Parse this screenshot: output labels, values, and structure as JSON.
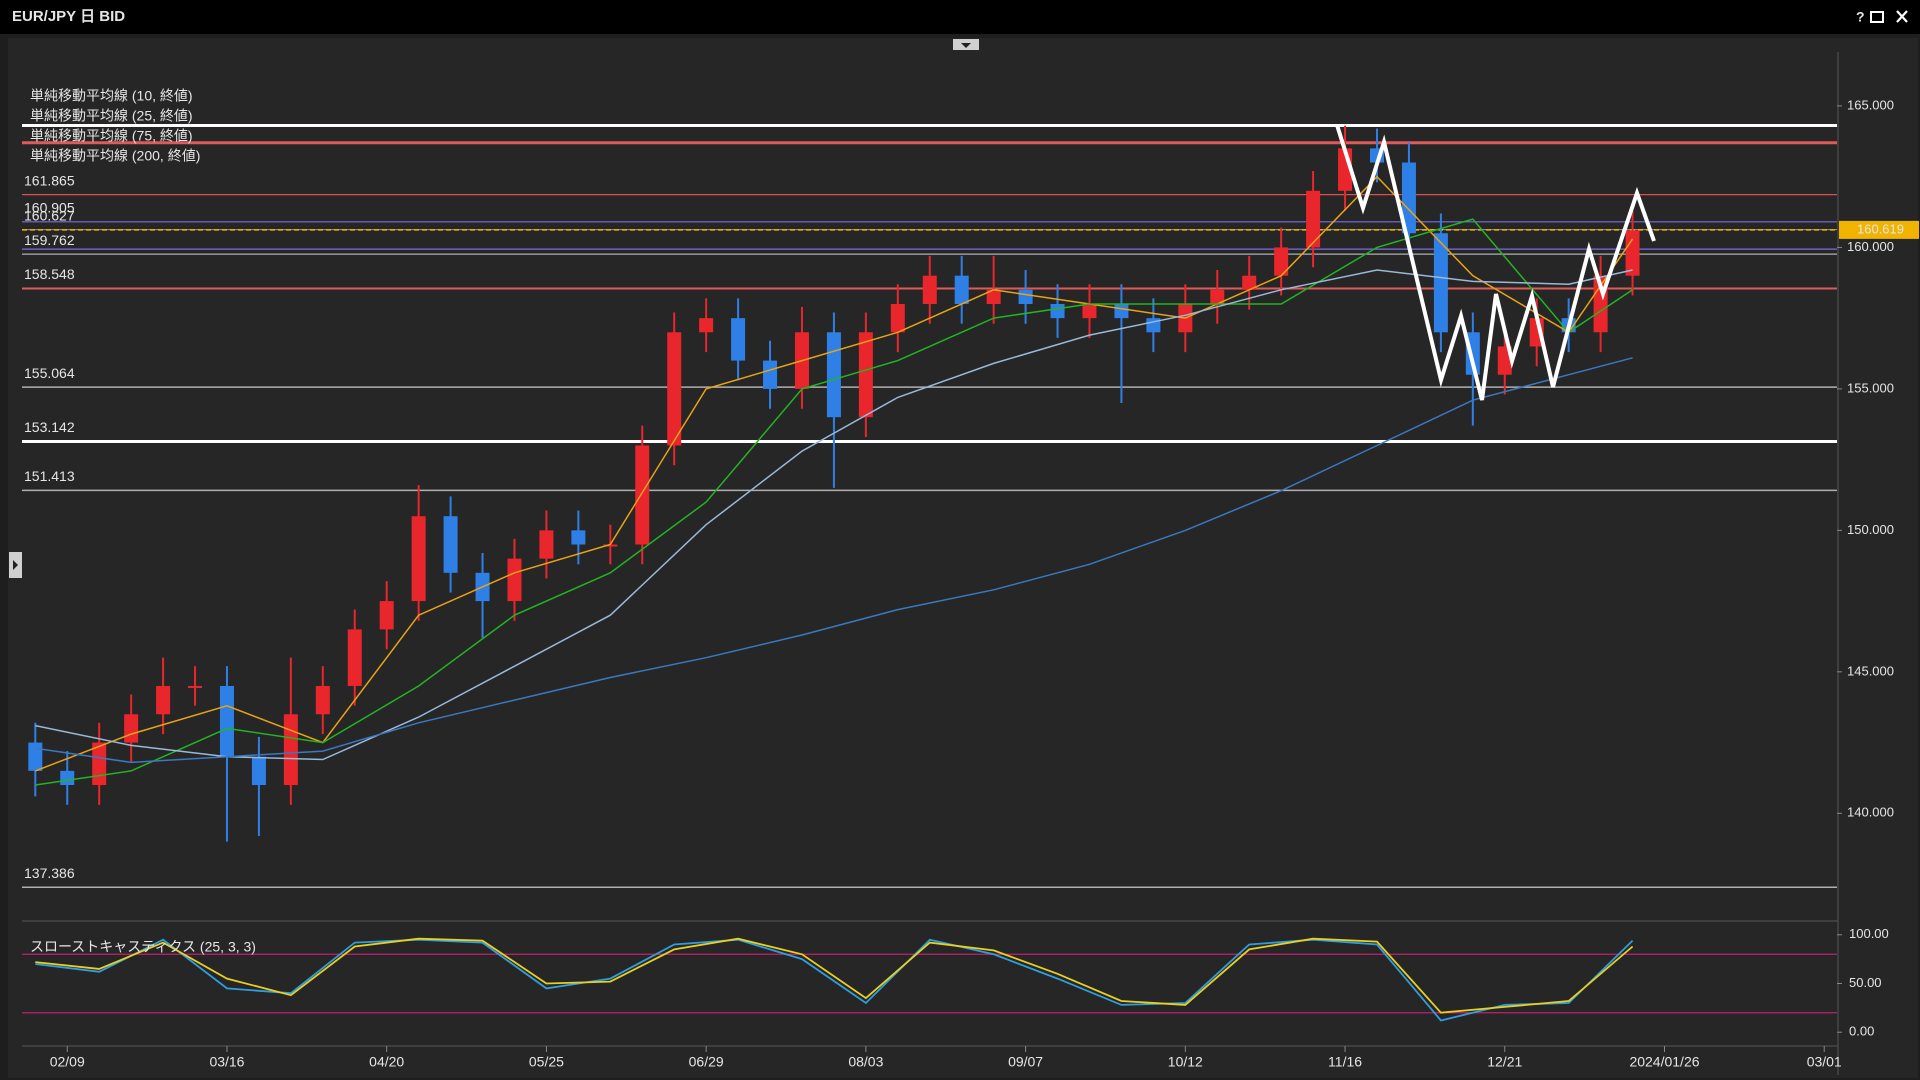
{
  "chart_data": {
    "type": "candlestick",
    "title": "EUR/JPY 日 BID",
    "help_button": "?",
    "x": [
      -1,
      0,
      1,
      2,
      3,
      4,
      5,
      6,
      7,
      8,
      9,
      10,
      11,
      12,
      13,
      14,
      15,
      16,
      17,
      18,
      19,
      20,
      21,
      22,
      23,
      24,
      25,
      26,
      27,
      28,
      29,
      30,
      31,
      32,
      33,
      34,
      35,
      36,
      37,
      38,
      39,
      40,
      41,
      42,
      43,
      44,
      45,
      46,
      47,
      48,
      49
    ],
    "open": [
      142.5,
      141.5,
      141,
      142.5,
      143.5,
      144.5,
      144.5,
      142,
      141,
      143.5,
      144.5,
      146.5,
      147.5,
      150.5,
      148.5,
      147.5,
      149,
      150,
      149.5,
      149.5,
      153,
      157,
      157.5,
      156,
      155,
      157,
      154,
      157,
      158,
      159,
      158,
      158.5,
      158,
      157.5,
      158,
      157.5,
      157,
      158,
      158.5,
      159,
      160,
      162,
      163.5,
      163,
      160.5,
      157,
      155.5,
      156.5,
      157.5,
      157,
      159
    ],
    "high": [
      143.2,
      142.2,
      143.2,
      144.2,
      145.5,
      145.2,
      145.2,
      142.7,
      145.5,
      145.2,
      147.2,
      148.2,
      151.6,
      151.2,
      149.2,
      149.7,
      150.7,
      150.7,
      150.2,
      153.7,
      157.7,
      158.2,
      158.2,
      156.7,
      157.9,
      157.7,
      157.7,
      158.7,
      159.7,
      159.7,
      159.7,
      159.2,
      158.7,
      158.7,
      158.7,
      158.2,
      158.7,
      159.2,
      159.7,
      160.7,
      162.7,
      164.3,
      164.2,
      163.7,
      161.2,
      157.7,
      157.2,
      158.2,
      158.2,
      159.7,
      161.3
    ],
    "low": [
      140.6,
      140.3,
      140.3,
      141.8,
      142.8,
      143.8,
      139,
      139.2,
      140.3,
      142.8,
      143.8,
      145.8,
      146.8,
      147.8,
      146.2,
      146.8,
      148.3,
      148.8,
      148.8,
      148.8,
      152.3,
      156.3,
      155.3,
      154.3,
      154.3,
      151.5,
      153.3,
      156.3,
      157.3,
      157.3,
      157.3,
      157.3,
      156.8,
      156.8,
      154.5,
      156.3,
      156.3,
      157.3,
      157.8,
      158.3,
      159.3,
      161.3,
      162.3,
      159.8,
      156.3,
      153.7,
      154.8,
      155.8,
      156.3,
      156.3,
      158.3
    ],
    "close": [
      141.5,
      141,
      142.5,
      143.5,
      144.5,
      144.5,
      142,
      141,
      143.5,
      144.5,
      146.5,
      147.5,
      150.5,
      148.5,
      147.5,
      149,
      150,
      149.5,
      149.5,
      153,
      157,
      157.5,
      156,
      155,
      157,
      154,
      157,
      158,
      159,
      158,
      158.5,
      158,
      157.5,
      158,
      157.5,
      157,
      158,
      158.5,
      159,
      160,
      162,
      163.5,
      163,
      160.5,
      157,
      155.5,
      156.5,
      157.5,
      157,
      159,
      160.6
    ],
    "up_color": "#e8262c",
    "down_color": "#2f80e6",
    "xlim": [
      -1.26,
      55.4
    ],
    "xticks": [
      {
        "value": 0,
        "label": "02/09"
      },
      {
        "value": 5,
        "label": "03/16"
      },
      {
        "value": 10,
        "label": "04/20"
      },
      {
        "value": 15,
        "label": "05/25"
      },
      {
        "value": 20,
        "label": "06/29"
      },
      {
        "value": 25,
        "label": "08/03"
      },
      {
        "value": 30,
        "label": "09/07"
      },
      {
        "value": 35,
        "label": "10/12"
      },
      {
        "value": 40,
        "label": "11/16"
      },
      {
        "value": 45,
        "label": "12/21"
      },
      {
        "value": 50,
        "label": "2024/01/26"
      },
      {
        "value": 55,
        "label": "03/01"
      }
    ],
    "ylim": [
      136.3,
      166.8
    ],
    "yticks": [
      {
        "value": 140,
        "label": "140.000"
      },
      {
        "value": 145,
        "label": "145.000"
      },
      {
        "value": 150,
        "label": "150.000"
      },
      {
        "value": 155,
        "label": "155.000"
      },
      {
        "value": 160,
        "label": "160.000"
      },
      {
        "value": 165,
        "label": "165.000"
      }
    ],
    "last_price": 160.619,
    "last_price_color": "#f0b400",
    "series": [
      {
        "name": "単純移動平均線 (10, 終値)",
        "color": "#e8a317",
        "x": [
          -1,
          2,
          5,
          8,
          11,
          14,
          17,
          20,
          23,
          26,
          29,
          32,
          35,
          38,
          41,
          44,
          47,
          49
        ],
        "values": [
          141.5,
          142.8,
          143.8,
          142.5,
          147,
          148.5,
          149.5,
          155,
          156,
          157,
          158.5,
          158,
          157.5,
          159,
          162.5,
          159,
          157,
          160.3
        ]
      },
      {
        "name": "単純移動平均線 (25, 終値)",
        "color": "#22b422",
        "x": [
          -1,
          2,
          5,
          8,
          11,
          14,
          17,
          20,
          23,
          26,
          29,
          32,
          35,
          38,
          41,
          44,
          47,
          49
        ],
        "values": [
          141,
          141.5,
          143,
          142.5,
          144.5,
          147,
          148.5,
          151,
          155,
          156,
          157.5,
          158,
          158,
          158,
          160,
          161,
          157,
          158.5
        ]
      },
      {
        "name": "単純移動平均線 (75, 終値)",
        "color": "#9ab8d8",
        "x": [
          -1,
          2,
          5,
          8,
          11,
          14,
          17,
          20,
          23,
          26,
          29,
          32,
          35,
          38,
          41,
          44,
          47,
          49
        ],
        "values": [
          143.1,
          142.4,
          142,
          141.9,
          143.4,
          145.2,
          147,
          150.2,
          152.8,
          154.7,
          155.9,
          156.9,
          157.6,
          158.5,
          159.2,
          158.8,
          158.7,
          159.2
        ]
      },
      {
        "name": "単純移動平均線 (200, 終値)",
        "color": "#3a78c0",
        "x": [
          -1,
          2,
          5,
          8,
          11,
          14,
          17,
          20,
          23,
          26,
          29,
          32,
          35,
          38,
          41,
          44,
          47,
          49
        ],
        "values": [
          142.3,
          141.8,
          142,
          142.2,
          143.2,
          144,
          144.8,
          145.5,
          146.3,
          147.2,
          147.9,
          148.8,
          150,
          151.4,
          153,
          154.6,
          155.5,
          156.1
        ]
      }
    ],
    "levels": [
      {
        "value": 164.31,
        "color": "#ffffff",
        "width": 3,
        "labeled": false
      },
      {
        "value": 163.7,
        "color": "#e05a5a",
        "width": 3,
        "labeled": false
      },
      {
        "value": 161.865,
        "color": "#d95050",
        "width": 1.2,
        "labeled": true
      },
      {
        "value": 160.905,
        "color": "#7a6fe0",
        "width": 1.2,
        "labeled": true
      },
      {
        "value": 160.627,
        "color": "#9a9a9a",
        "width": 1,
        "labeled": true
      },
      {
        "value": 159.94,
        "color": "#7a6fe0",
        "width": 1.2,
        "labeled": false
      },
      {
        "value": 159.762,
        "color": "#b0b0b0",
        "width": 1.2,
        "labeled": true
      },
      {
        "value": 158.548,
        "color": "#e05a5a",
        "width": 2,
        "labeled": true
      },
      {
        "value": 155.064,
        "color": "#b0b0b0",
        "width": 1.5,
        "labeled": true
      },
      {
        "value": 153.142,
        "color": "#ffffff",
        "width": 3,
        "labeled": true
      },
      {
        "value": 151.413,
        "color": "#b0b0b0",
        "width": 1.5,
        "labeled": true
      },
      {
        "value": 137.386,
        "color": "#b0b0b0",
        "width": 1.5,
        "labeled": true
      }
    ],
    "indicator": {
      "title": "スローストキャスティクス (25, 3, 3)",
      "ylim": [
        -8,
        108
      ],
      "yticks": [
        {
          "value": 0,
          "label": "0.00"
        },
        {
          "value": 50,
          "label": "50.00"
        },
        {
          "value": 100,
          "label": "100.00"
        }
      ],
      "levels": [
        80,
        20
      ],
      "level_color": "#c02070",
      "series": [
        {
          "color": "#2f9ee0",
          "x": [
            -1,
            1,
            3,
            5,
            7,
            9,
            11,
            13,
            15,
            17,
            19,
            21,
            23,
            25,
            27,
            29,
            31,
            33,
            35,
            37,
            39,
            41,
            43,
            45,
            47,
            49
          ],
          "values": [
            70,
            62,
            95,
            45,
            40,
            92,
            95,
            92,
            45,
            55,
            90,
            95,
            75,
            30,
            95,
            80,
            55,
            28,
            30,
            90,
            95,
            90,
            12,
            28,
            30,
            94
          ]
        },
        {
          "color": "#e8d020",
          "x": [
            -1,
            1,
            3,
            5,
            7,
            9,
            11,
            13,
            15,
            17,
            19,
            21,
            23,
            25,
            27,
            29,
            31,
            33,
            35,
            37,
            39,
            41,
            43,
            45,
            47,
            49
          ],
          "values": [
            72,
            65,
            92,
            55,
            38,
            88,
            96,
            94,
            50,
            52,
            85,
            96,
            80,
            35,
            92,
            84,
            60,
            32,
            28,
            85,
            96,
            93,
            20,
            26,
            32,
            88
          ]
        }
      ]
    }
  }
}
